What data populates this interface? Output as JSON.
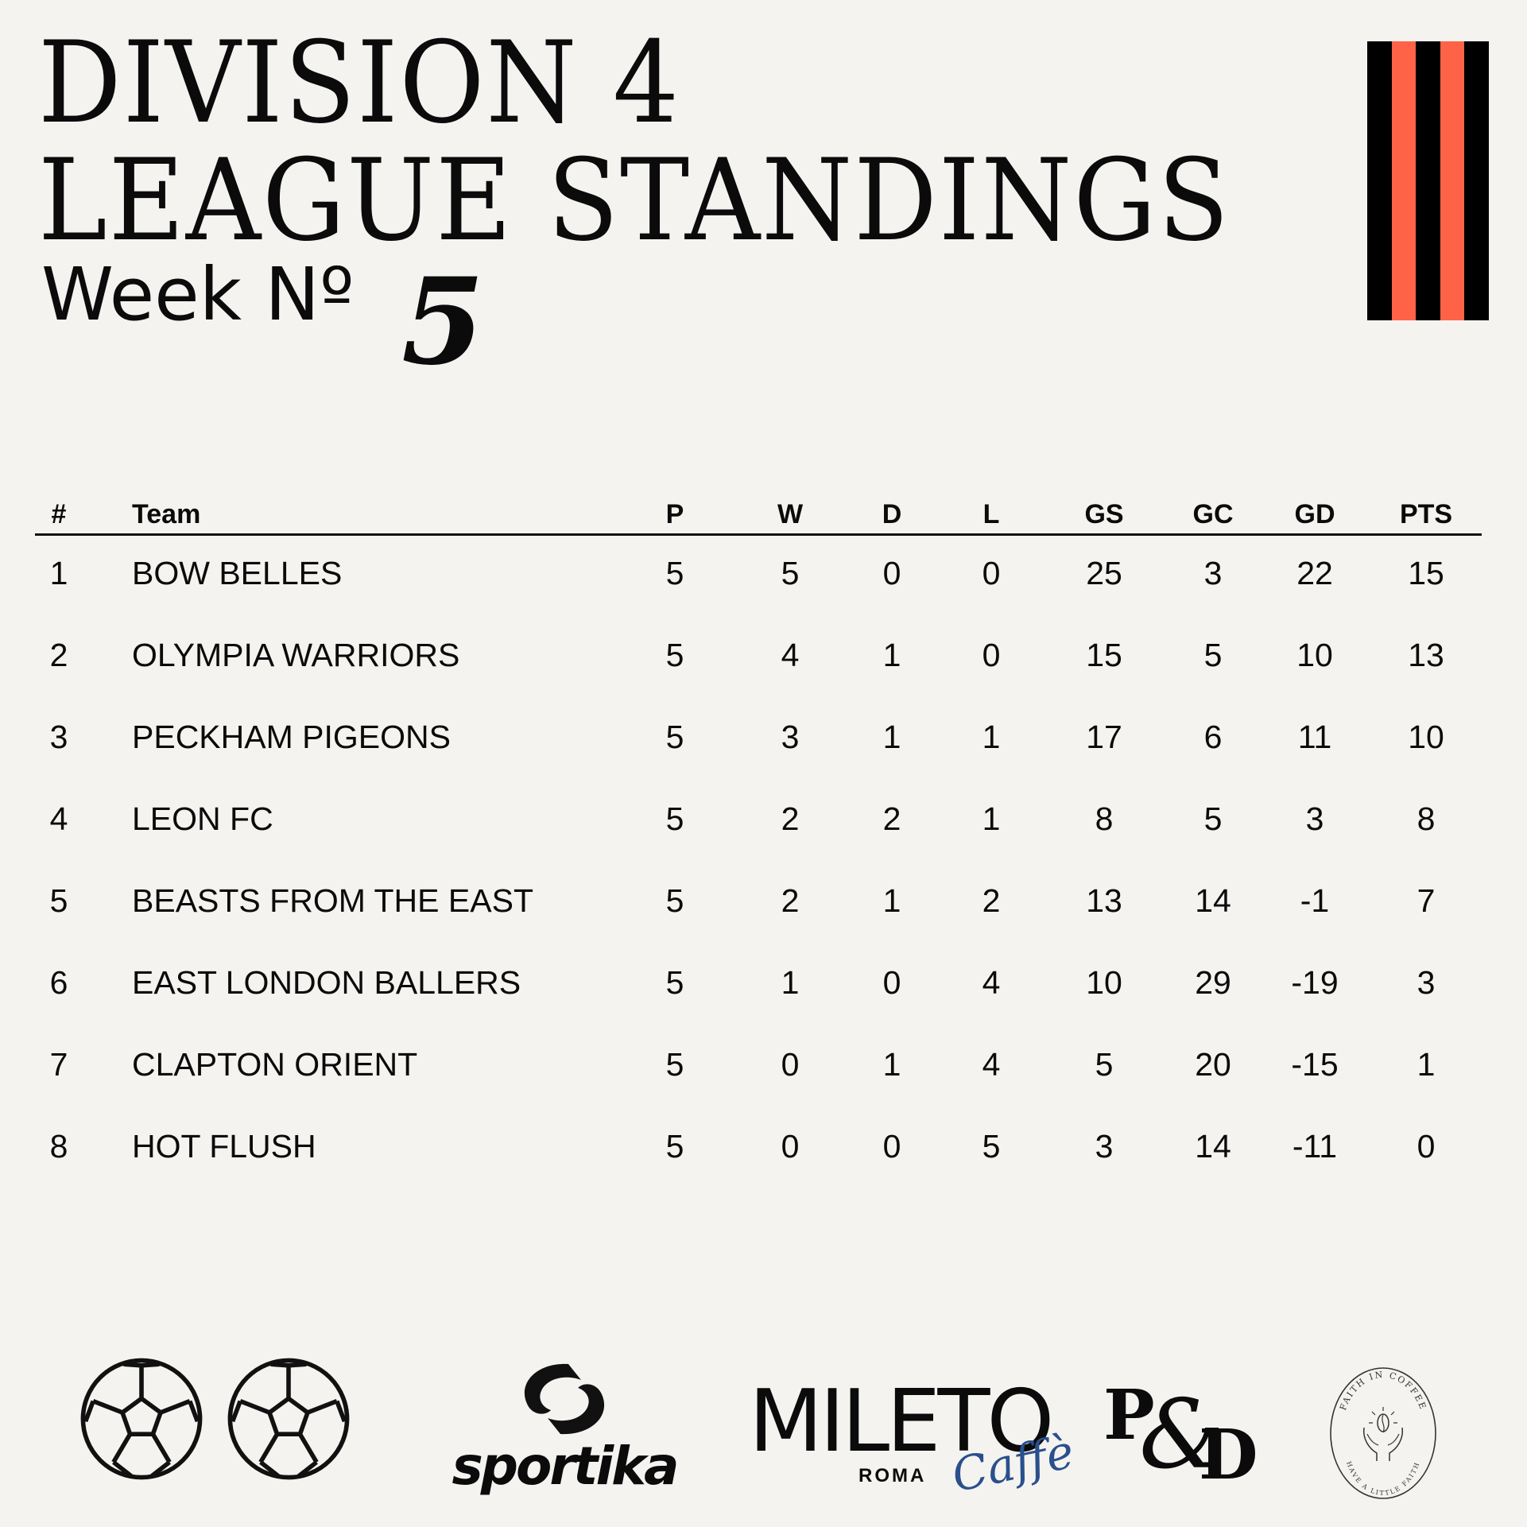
{
  "header": {
    "title_line1": "DIVISION 4",
    "title_line2": "LEAGUE STANDINGS",
    "week_label": "Week Nº",
    "week_number": "5"
  },
  "flag": {
    "stripes": [
      "#000000",
      "#ff6347",
      "#000000",
      "#ff6347",
      "#000000"
    ]
  },
  "table": {
    "columns": [
      "#",
      "Team",
      "P",
      "W",
      "D",
      "L",
      "GS",
      "GC",
      "GD",
      "PTS"
    ],
    "rows": [
      [
        "1",
        "BOW BELLES",
        "5",
        "5",
        "0",
        "0",
        "25",
        "3",
        "22",
        "15"
      ],
      [
        "2",
        "OLYMPIA WARRIORS",
        "5",
        "4",
        "1",
        "0",
        "15",
        "5",
        "10",
        "13"
      ],
      [
        "3",
        "PECKHAM PIGEONS",
        "5",
        "3",
        "1",
        "1",
        "17",
        "6",
        "11",
        "10"
      ],
      [
        "4",
        "LEON FC",
        "5",
        "2",
        "2",
        "1",
        "8",
        "5",
        "3",
        "8"
      ],
      [
        "5",
        "BEASTS FROM THE EAST",
        "5",
        "2",
        "1",
        "2",
        "13",
        "14",
        "-1",
        "7"
      ],
      [
        "6",
        "EAST LONDON BALLERS",
        "5",
        "1",
        "0",
        "4",
        "10",
        "29",
        "-19",
        "3"
      ],
      [
        "7",
        "CLAPTON ORIENT",
        "5",
        "0",
        "1",
        "4",
        "5",
        "20",
        "-15",
        "1"
      ],
      [
        "8",
        "HOT FLUSH",
        "5",
        "0",
        "0",
        "5",
        "3",
        "14",
        "-11",
        "0"
      ]
    ]
  },
  "sponsors": {
    "icons": [
      "soccer-ball-icon",
      "soccer-ball-icon"
    ],
    "sportika": "sportika",
    "mileto_name": "MILETO",
    "mileto_city": "ROMA",
    "mileto_script": "Caffè",
    "pd_p": "P",
    "pd_amp": "&",
    "pd_d": "D",
    "faith_top": "FAITH IN COFFEE",
    "faith_bottom": "HAVE A LITTLE FAITH"
  },
  "colors": {
    "background": "#f4f3f0",
    "text": "#0b0b0b",
    "accent": "#ff6347",
    "script_blue": "#2a4f8c"
  }
}
